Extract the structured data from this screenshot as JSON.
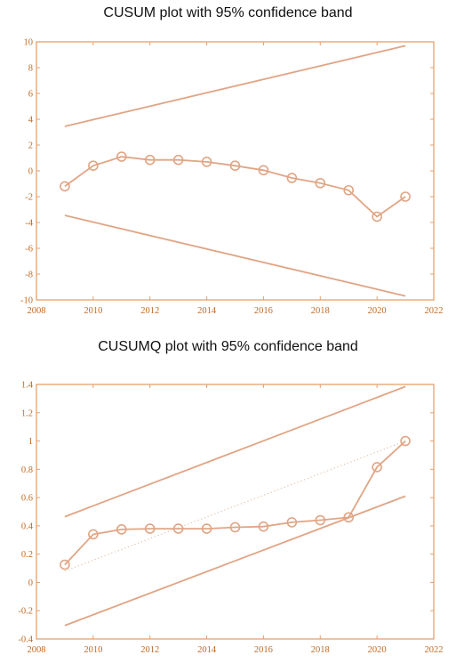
{
  "colors": {
    "axis": "#e8a06a",
    "line": "#e0a585",
    "tick_text": "#c06a25",
    "title": "#111111"
  },
  "chart_data": [
    {
      "type": "line",
      "title": "CUSUM plot with 95% confidence band",
      "xlim": [
        2008,
        2022
      ],
      "ylim": [
        -10,
        10
      ],
      "xticks": [
        2008,
        2010,
        2012,
        2014,
        2016,
        2018,
        2020,
        2022
      ],
      "yticks": [
        -10,
        -8,
        -6,
        -4,
        -2,
        0,
        2,
        4,
        6,
        8,
        10
      ],
      "grid": false,
      "series": [
        {
          "role": "statistic",
          "marker": "circle",
          "x": [
            2009,
            2010,
            2011,
            2012,
            2013,
            2014,
            2015,
            2016,
            2017,
            2018,
            2019,
            2020,
            2021
          ],
          "y": [
            -1.2,
            0.4,
            1.1,
            0.85,
            0.85,
            0.7,
            0.4,
            0.05,
            -0.55,
            -0.95,
            -1.5,
            -3.55,
            -2.0
          ]
        },
        {
          "role": "upper-bound",
          "x": [
            2009,
            2021
          ],
          "y": [
            3.45,
            9.7
          ]
        },
        {
          "role": "lower-bound",
          "x": [
            2009,
            2021
          ],
          "y": [
            -3.45,
            -9.7
          ]
        }
      ]
    },
    {
      "type": "line",
      "title": "CUSUMQ plot with 95% confidence band",
      "xlim": [
        2008,
        2022
      ],
      "ylim": [
        -0.4,
        1.4
      ],
      "xticks": [
        2008,
        2010,
        2012,
        2014,
        2016,
        2018,
        2020,
        2022
      ],
      "yticks": [
        "-0.4",
        "-0.2",
        "0",
        "0.2",
        "0.4",
        "0.6",
        "0.8",
        "1",
        "1.2",
        "1.4"
      ],
      "grid": false,
      "series": [
        {
          "role": "statistic",
          "marker": "circle",
          "x": [
            2009,
            2010,
            2011,
            2012,
            2013,
            2014,
            2015,
            2016,
            2017,
            2018,
            2019,
            2020,
            2021
          ],
          "y": [
            0.125,
            0.34,
            0.375,
            0.38,
            0.38,
            0.38,
            0.39,
            0.395,
            0.425,
            0.44,
            0.46,
            0.815,
            1.0
          ]
        },
        {
          "role": "expected",
          "style": "dotted",
          "x": [
            2009,
            2021
          ],
          "y": [
            0.08,
            1.0
          ]
        },
        {
          "role": "upper-bound",
          "x": [
            2009,
            2021
          ],
          "y": [
            0.465,
            1.385
          ]
        },
        {
          "role": "lower-bound",
          "x": [
            2009,
            2021
          ],
          "y": [
            -0.305,
            0.61
          ]
        }
      ]
    }
  ]
}
